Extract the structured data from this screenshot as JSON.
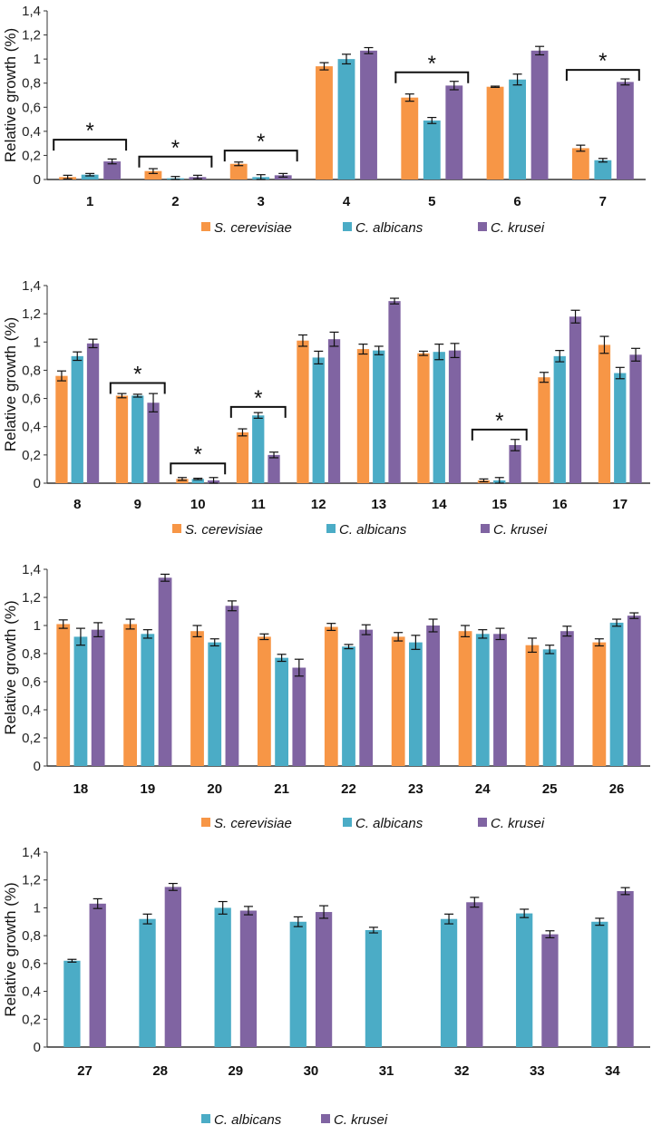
{
  "chart_data": [
    {
      "type": "bar",
      "ylabel": "Relative growth (%)",
      "ylim": [
        0,
        1.4
      ],
      "yticks": [
        "0",
        "0,2",
        "0,4",
        "0,6",
        "0,8",
        "1",
        "1,2",
        "1,4"
      ],
      "categories": [
        "1",
        "2",
        "3",
        "4",
        "5",
        "6",
        "7"
      ],
      "series": [
        {
          "name": "S. cerevisiae",
          "color": "#F79646",
          "values": [
            0.02,
            0.07,
            0.13,
            0.94,
            0.68,
            0.77,
            0.26
          ],
          "errors": [
            0.015,
            0.02,
            0.015,
            0.03,
            0.03,
            0.005,
            0.025
          ]
        },
        {
          "name": "C. albicans",
          "color": "#4BACC6",
          "values": [
            0.04,
            0.01,
            0.02,
            1.0,
            0.49,
            0.83,
            0.16
          ],
          "errors": [
            0.01,
            0.015,
            0.02,
            0.04,
            0.025,
            0.045,
            0.015
          ]
        },
        {
          "name": "C. krusei",
          "color": "#8064A2",
          "values": [
            0.15,
            0.02,
            0.035,
            1.07,
            0.78,
            1.07,
            0.81
          ],
          "errors": [
            0.02,
            0.015,
            0.015,
            0.025,
            0.035,
            0.035,
            0.025
          ]
        }
      ],
      "significance": [
        {
          "category": "1",
          "level": 0.33,
          "label": "*"
        },
        {
          "category": "2",
          "level": 0.19,
          "label": "*"
        },
        {
          "category": "3",
          "level": 0.24,
          "label": "*"
        },
        {
          "category": "5",
          "level": 0.89,
          "label": "*"
        },
        {
          "category": "7",
          "level": 0.91,
          "label": "*"
        }
      ],
      "legend": "bottom"
    },
    {
      "type": "bar",
      "ylabel": "Relative growth (%)",
      "ylim": [
        0,
        1.4
      ],
      "yticks": [
        "0",
        "0,2",
        "0,4",
        "0,6",
        "0,8",
        "1",
        "1,2",
        "1,4"
      ],
      "categories": [
        "8",
        "9",
        "10",
        "11",
        "12",
        "13",
        "14",
        "15",
        "16",
        "17"
      ],
      "series": [
        {
          "name": "S. cerevisiae",
          "color": "#F79646",
          "values": [
            0.76,
            0.62,
            0.03,
            0.36,
            1.01,
            0.95,
            0.92,
            0.02,
            0.75,
            0.98
          ],
          "errors": [
            0.035,
            0.015,
            0.01,
            0.025,
            0.04,
            0.035,
            0.015,
            0.01,
            0.035,
            0.06
          ]
        },
        {
          "name": "C. albicans",
          "color": "#4BACC6",
          "values": [
            0.9,
            0.62,
            0.03,
            0.48,
            0.89,
            0.94,
            0.93,
            0.02,
            0.9,
            0.78
          ],
          "errors": [
            0.03,
            0.01,
            0.005,
            0.02,
            0.045,
            0.03,
            0.055,
            0.02,
            0.04,
            0.04
          ]
        },
        {
          "name": "C. krusei",
          "color": "#8064A2",
          "values": [
            0.99,
            0.57,
            0.02,
            0.2,
            1.02,
            1.29,
            0.94,
            0.27,
            1.18,
            0.91
          ],
          "errors": [
            0.03,
            0.065,
            0.02,
            0.02,
            0.05,
            0.02,
            0.05,
            0.04,
            0.045,
            0.045
          ]
        }
      ],
      "significance": [
        {
          "category": "9",
          "level": 0.71,
          "label": "*"
        },
        {
          "category": "10",
          "level": 0.14,
          "label": "*"
        },
        {
          "category": "11",
          "level": 0.54,
          "label": "*"
        },
        {
          "category": "15",
          "level": 0.38,
          "label": "*"
        }
      ],
      "legend": "bottom"
    },
    {
      "type": "bar",
      "ylabel": "Relative growth (%)",
      "ylim": [
        0,
        1.4
      ],
      "yticks": [
        "0",
        "0,2",
        "0,4",
        "0,6",
        "0,8",
        "1",
        "1,2",
        "1,4"
      ],
      "categories": [
        "18",
        "19",
        "20",
        "21",
        "22",
        "23",
        "24",
        "25",
        "26"
      ],
      "series": [
        {
          "name": "S. cerevisiae",
          "color": "#F79646",
          "values": [
            1.01,
            1.01,
            0.96,
            0.92,
            0.99,
            0.92,
            0.96,
            0.86,
            0.88
          ],
          "errors": [
            0.03,
            0.035,
            0.04,
            0.02,
            0.025,
            0.03,
            0.04,
            0.05,
            0.025
          ]
        },
        {
          "name": "C. albicans",
          "color": "#4BACC6",
          "values": [
            0.92,
            0.94,
            0.88,
            0.77,
            0.85,
            0.88,
            0.94,
            0.83,
            1.02
          ],
          "errors": [
            0.06,
            0.03,
            0.025,
            0.025,
            0.015,
            0.05,
            0.03,
            0.03,
            0.025
          ]
        },
        {
          "name": "C. krusei",
          "color": "#8064A2",
          "values": [
            0.97,
            1.34,
            1.14,
            0.7,
            0.97,
            1.0,
            0.94,
            0.96,
            1.07
          ],
          "errors": [
            0.05,
            0.025,
            0.035,
            0.06,
            0.035,
            0.045,
            0.04,
            0.035,
            0.02
          ]
        }
      ],
      "significance": [],
      "legend": "bottom"
    },
    {
      "type": "bar",
      "ylabel": "Relative growth (%)",
      "ylim": [
        0,
        1.4
      ],
      "yticks": [
        "0",
        "0,2",
        "0,4",
        "0,6",
        "0,8",
        "1",
        "1,2",
        "1,4"
      ],
      "categories": [
        "27",
        "28",
        "29",
        "30",
        "31",
        "32",
        "33",
        "34"
      ],
      "series": [
        {
          "name": "C. albicans",
          "color": "#4BACC6",
          "values": [
            0.62,
            0.92,
            1.0,
            0.9,
            0.84,
            0.92,
            0.96,
            0.9
          ],
          "errors": [
            0.01,
            0.035,
            0.045,
            0.035,
            0.02,
            0.035,
            0.03,
            0.025
          ]
        },
        {
          "name": "C. krusei",
          "color": "#8064A2",
          "values": [
            1.03,
            1.15,
            0.98,
            0.97,
            null,
            1.04,
            0.81,
            1.12
          ],
          "errors": [
            0.035,
            0.025,
            0.03,
            0.045,
            0,
            0.035,
            0.025,
            0.025
          ]
        }
      ],
      "significance": [],
      "legend": "bottom"
    }
  ]
}
